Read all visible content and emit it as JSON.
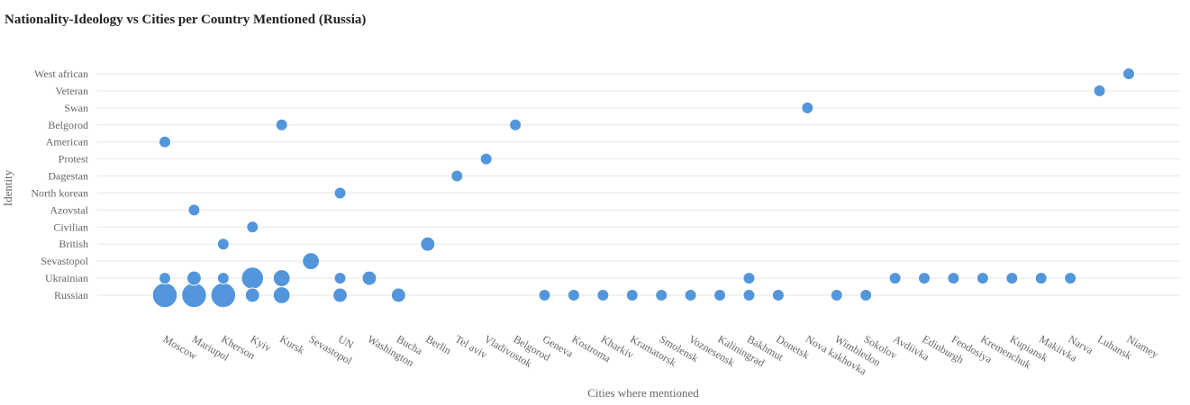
{
  "chart_data": {
    "type": "scatter",
    "title": "Nationality-Ideology vs Cities per Country Mentioned (Russia)",
    "xlabel": "Cities where mentioned",
    "ylabel": "Identity",
    "grid": "horizontal",
    "point_color": "#4a90d9",
    "x_categories": [
      "Moscow",
      "Mariupol",
      "Kherson",
      "Kyiv",
      "Kursk",
      "Sevastopol",
      "UN",
      "Washington",
      "Bucha",
      "Berlin",
      "Tel aviv",
      "Vladivostok",
      "Belgorod",
      "Geneva",
      "Kostroma",
      "Kharkiv",
      "Kramatorsk",
      "Smolensk",
      "Voznesensk",
      "Kaliningrad",
      "Bakhmut",
      "Donetsk",
      "Nova kakhovka",
      "Wimbledon",
      "Sokolov",
      "Avdiivka",
      "Edinburgh",
      "Feodosiya",
      "Kremenchuk",
      "Kupiansk",
      "Makiivka",
      "Narva",
      "Luhansk",
      "Niamey"
    ],
    "y_categories": [
      "Russian",
      "Ukrainian",
      "Sevastopol",
      "British",
      "Civilian",
      "Azovstal",
      "North korean",
      "Dagestan",
      "Protest",
      "American",
      "Belgorod",
      "Swan",
      "Veteran",
      "West african"
    ],
    "points": [
      {
        "x": "Moscow",
        "y": "Russian",
        "size": 6
      },
      {
        "x": "Moscow",
        "y": "Ukrainian",
        "size": 1
      },
      {
        "x": "Moscow",
        "y": "American",
        "size": 1
      },
      {
        "x": "Mariupol",
        "y": "Russian",
        "size": 6
      },
      {
        "x": "Mariupol",
        "y": "Ukrainian",
        "size": 2
      },
      {
        "x": "Mariupol",
        "y": "Azovstal",
        "size": 1
      },
      {
        "x": "Kherson",
        "y": "Russian",
        "size": 6
      },
      {
        "x": "Kherson",
        "y": "Ukrainian",
        "size": 1
      },
      {
        "x": "Kherson",
        "y": "British",
        "size": 1
      },
      {
        "x": "Kyiv",
        "y": "Russian",
        "size": 2
      },
      {
        "x": "Kyiv",
        "y": "Ukrainian",
        "size": 5
      },
      {
        "x": "Kyiv",
        "y": "Civilian",
        "size": 1
      },
      {
        "x": "Kursk",
        "y": "Russian",
        "size": 3
      },
      {
        "x": "Kursk",
        "y": "Ukrainian",
        "size": 3
      },
      {
        "x": "Kursk",
        "y": "Belgorod",
        "size": 1
      },
      {
        "x": "Sevastopol",
        "y": "Sevastopol",
        "size": 3
      },
      {
        "x": "UN",
        "y": "Russian",
        "size": 2
      },
      {
        "x": "UN",
        "y": "Ukrainian",
        "size": 1
      },
      {
        "x": "UN",
        "y": "North korean",
        "size": 1
      },
      {
        "x": "Washington",
        "y": "Ukrainian",
        "size": 2
      },
      {
        "x": "Bucha",
        "y": "Russian",
        "size": 2
      },
      {
        "x": "Berlin",
        "y": "British",
        "size": 2
      },
      {
        "x": "Tel aviv",
        "y": "Dagestan",
        "size": 1
      },
      {
        "x": "Vladivostok",
        "y": "Protest",
        "size": 1
      },
      {
        "x": "Belgorod",
        "y": "Belgorod",
        "size": 1
      },
      {
        "x": "Geneva",
        "y": "Russian",
        "size": 1
      },
      {
        "x": "Kostroma",
        "y": "Russian",
        "size": 1
      },
      {
        "x": "Kharkiv",
        "y": "Russian",
        "size": 1
      },
      {
        "x": "Kramatorsk",
        "y": "Russian",
        "size": 1
      },
      {
        "x": "Smolensk",
        "y": "Russian",
        "size": 1
      },
      {
        "x": "Voznesensk",
        "y": "Russian",
        "size": 1
      },
      {
        "x": "Kaliningrad",
        "y": "Russian",
        "size": 1
      },
      {
        "x": "Bakhmut",
        "y": "Russian",
        "size": 1
      },
      {
        "x": "Bakhmut",
        "y": "Ukrainian",
        "size": 1
      },
      {
        "x": "Donetsk",
        "y": "Russian",
        "size": 1
      },
      {
        "x": "Nova kakhovka",
        "y": "Swan",
        "size": 1
      },
      {
        "x": "Wimbledon",
        "y": "Russian",
        "size": 1
      },
      {
        "x": "Sokolov",
        "y": "Russian",
        "size": 1
      },
      {
        "x": "Avdiivka",
        "y": "Ukrainian",
        "size": 1
      },
      {
        "x": "Edinburgh",
        "y": "Ukrainian",
        "size": 1
      },
      {
        "x": "Feodosiya",
        "y": "Ukrainian",
        "size": 1
      },
      {
        "x": "Kremenchuk",
        "y": "Ukrainian",
        "size": 1
      },
      {
        "x": "Kupiansk",
        "y": "Ukrainian",
        "size": 1
      },
      {
        "x": "Makiivka",
        "y": "Ukrainian",
        "size": 1
      },
      {
        "x": "Narva",
        "y": "Ukrainian",
        "size": 1
      },
      {
        "x": "Luhansk",
        "y": "Veteran",
        "size": 1
      },
      {
        "x": "Niamey",
        "y": "West african",
        "size": 1
      }
    ]
  }
}
